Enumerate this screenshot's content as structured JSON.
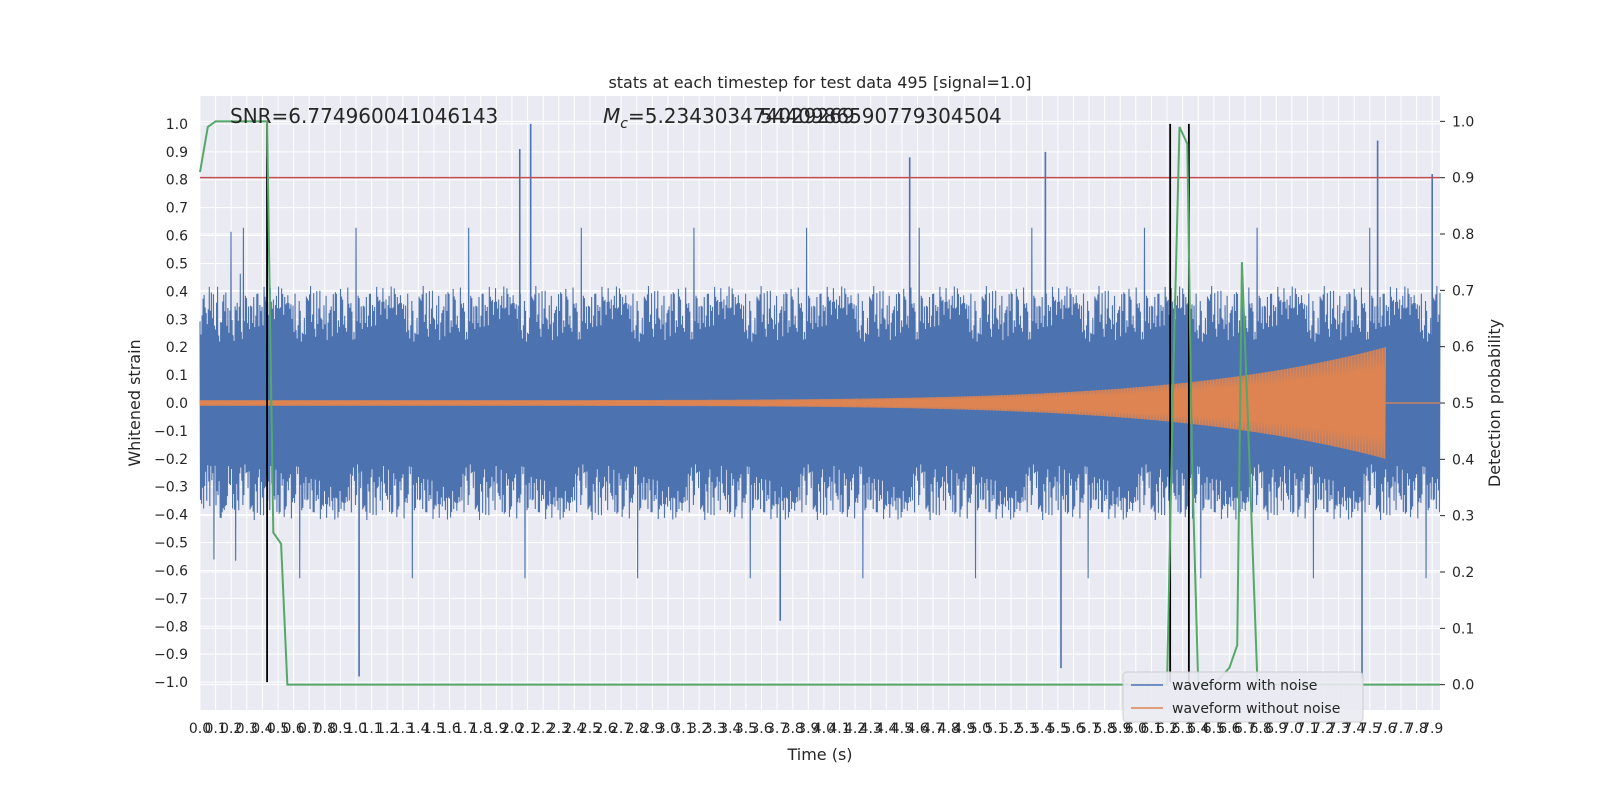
{
  "chart_data": {
    "type": "line",
    "title": "stats at each timestep for test data 495 [signal=1.0]",
    "xlabel": "Time (s)",
    "ylabel": "Whitened strain",
    "y2label": "Detection probability",
    "xlim": [
      0.0,
      7.95
    ],
    "ylim": [
      -1.1,
      1.1
    ],
    "y2lim": [
      -0.045,
      1.045
    ],
    "x_tick_step": 0.1,
    "x_tick_count": 80,
    "y_ticks": [
      -1.0,
      -0.9,
      -0.8,
      -0.7,
      -0.6,
      -0.5,
      -0.4,
      -0.3,
      -0.2,
      -0.1,
      0.0,
      0.1,
      0.2,
      0.3,
      0.4,
      0.5,
      0.6,
      0.7,
      0.8,
      0.9,
      1.0
    ],
    "y2_ticks": [
      0.0,
      0.1,
      0.2,
      0.3,
      0.4,
      0.5,
      0.6,
      0.7,
      0.8,
      0.9,
      1.0
    ],
    "grid": true,
    "annotations": {
      "snr": "SNR=6.774960041046143",
      "mc_symbol": "M",
      "mc_sub": "c",
      "mc_value": "=5.234303474029269",
      "overlap": "5440986590779304504"
    },
    "threshold": {
      "axis": "right",
      "value": 0.9,
      "color": "#c44e52"
    },
    "vertical_markers": [
      0.43,
      6.22,
      6.34
    ],
    "series": [
      {
        "name": "waveform with noise",
        "axis": "left",
        "color": "#4c72b0",
        "kind": "noise",
        "typical_amplitude": 0.4,
        "max": 1.0,
        "min": -0.98
      },
      {
        "name": "waveform without noise",
        "axis": "left",
        "color": "#dd8452",
        "kind": "chirp",
        "start_amplitude": 0.01,
        "end_amplitude": 0.2,
        "end_time": 7.6
      },
      {
        "name": "detection probability",
        "axis": "right",
        "color": "#55a868",
        "x": [
          0.0,
          0.05,
          0.1,
          0.15,
          0.2,
          0.25,
          0.3,
          0.35,
          0.4,
          0.43,
          0.47,
          0.52,
          0.56,
          0.6,
          0.7,
          1.0,
          2.0,
          3.0,
          4.0,
          5.0,
          6.0,
          6.2,
          6.24,
          6.28,
          6.33,
          6.36,
          6.4,
          6.5,
          6.6,
          6.65,
          6.68,
          6.72,
          6.78,
          6.82,
          7.0,
          7.5,
          7.95
        ],
        "y": [
          0.91,
          0.99,
          1.0,
          1.0,
          1.0,
          1.0,
          1.0,
          1.0,
          1.0,
          1.0,
          0.27,
          0.25,
          0.0,
          0.0,
          0.0,
          0.0,
          0.0,
          0.0,
          0.0,
          0.0,
          0.0,
          0.0,
          0.55,
          0.99,
          0.96,
          0.4,
          0.0,
          0.0,
          0.03,
          0.07,
          0.75,
          0.46,
          0.0,
          0.0,
          0.0,
          0.0,
          0.0
        ]
      }
    ],
    "legend": {
      "placement": "lower-right",
      "entries": [
        "waveform with noise",
        "waveform without noise"
      ]
    }
  }
}
